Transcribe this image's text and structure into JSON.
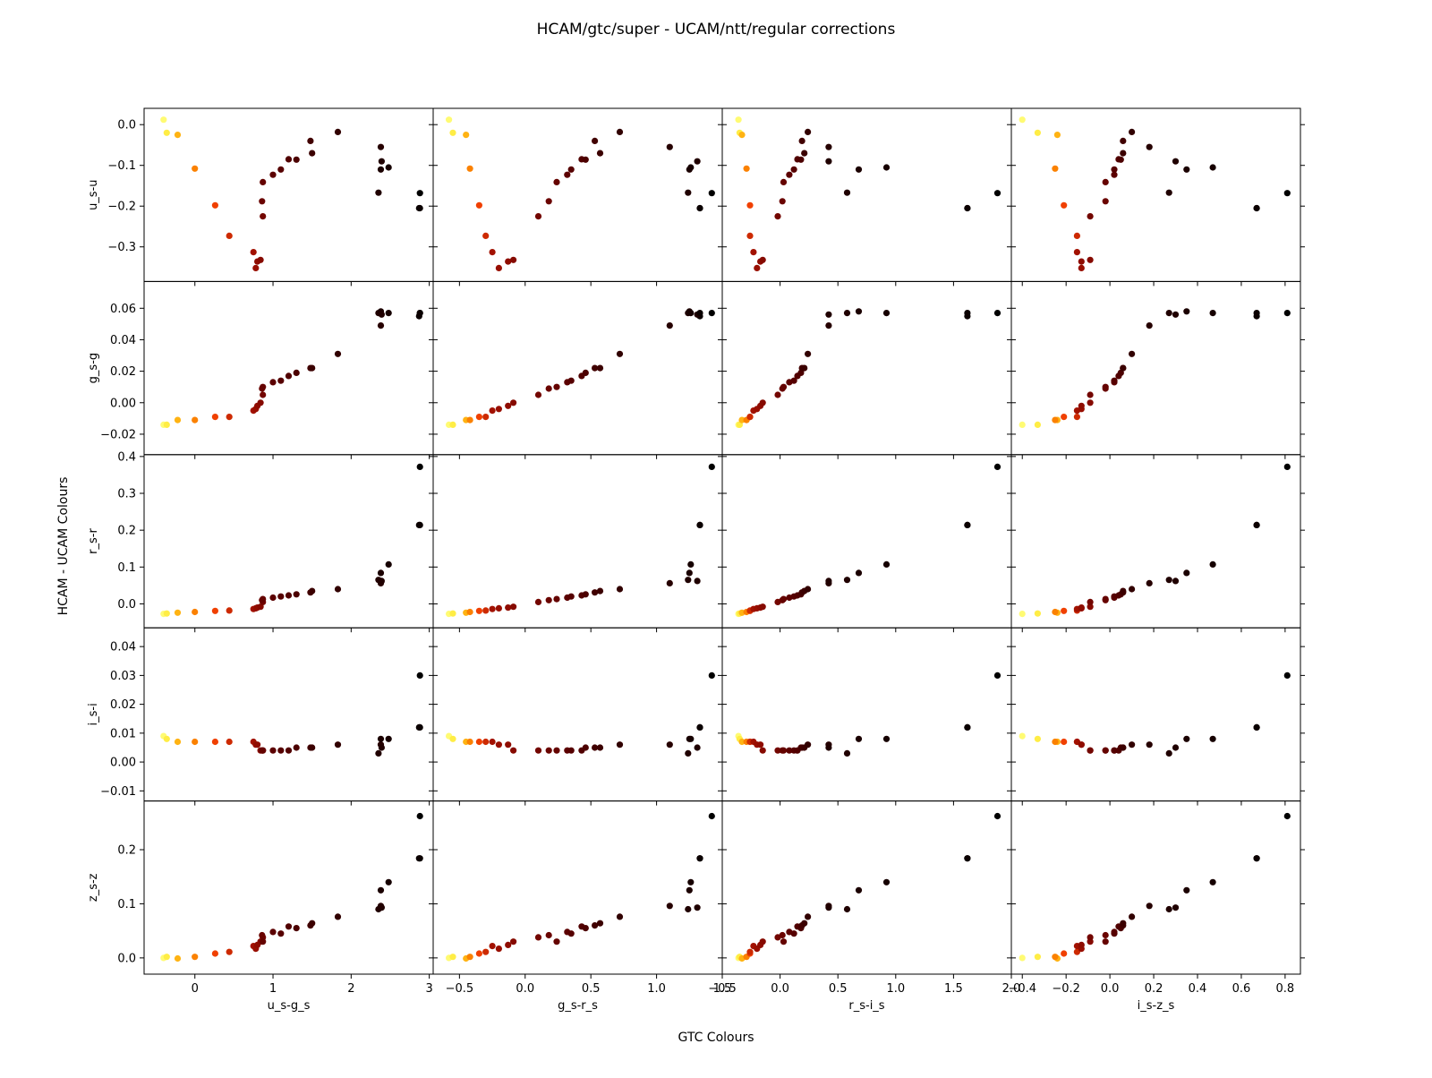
{
  "figure": {
    "title": "HCAM/gtc/super - UCAM/ntt/regular corrections",
    "xlabel": "GTC Colours",
    "ylabel": "HCAM - UCAM Colours"
  },
  "chart_data": {
    "type": "scatter",
    "grid": false,
    "colormap": [
      "#000000",
      "#5a0000",
      "#a81200",
      "#f04000",
      "#ff9a00",
      "#ffe93a",
      "#ffff80"
    ],
    "columns": [
      {
        "xlabel": "u_s-g_s",
        "xlim": [
          -0.65,
          3.05
        ],
        "ticks": [
          0,
          1,
          2,
          3
        ],
        "tick_labels": [
          "0",
          "1",
          "2",
          "3"
        ]
      },
      {
        "xlabel": "g_s-r_s",
        "xlim": [
          -0.7,
          1.5
        ],
        "ticks": [
          -0.5,
          0,
          0.5,
          1,
          1.5
        ],
        "tick_labels": [
          "−0.5",
          "0.0",
          "0.5",
          "1.0",
          "1.5"
        ]
      },
      {
        "xlabel": "r_s-i_s",
        "xlim": [
          -0.5,
          2.0
        ],
        "ticks": [
          -0.5,
          0,
          0.5,
          1,
          1.5,
          2
        ],
        "tick_labels": [
          "−0.5",
          "0.0",
          "0.5",
          "1.0",
          "1.5",
          "2.0"
        ]
      },
      {
        "xlabel": "i_s-z_s",
        "xlim": [
          -0.45,
          0.87
        ],
        "ticks": [
          -0.4,
          -0.2,
          0,
          0.2,
          0.4,
          0.6,
          0.8
        ],
        "tick_labels": [
          "−0.4",
          "−0.2",
          "0.0",
          "0.2",
          "0.4",
          "0.6",
          "0.8"
        ]
      }
    ],
    "rows": [
      {
        "ylabel": "u_s-u",
        "ylim": [
          -0.385,
          0.04
        ],
        "ticks": [
          0,
          -0.1,
          -0.2,
          -0.3
        ],
        "tick_labels": [
          "0.0",
          "−0.1",
          "−0.2",
          "−0.3"
        ]
      },
      {
        "ylabel": "g_s-g",
        "ylim": [
          -0.033,
          0.077
        ],
        "ticks": [
          0.06,
          0.04,
          0.02,
          0,
          -0.02
        ],
        "tick_labels": [
          "0.06",
          "0.04",
          "0.02",
          "0.00",
          "−0.02"
        ]
      },
      {
        "ylabel": "r_s-r",
        "ylim": [
          -0.065,
          0.405
        ],
        "ticks": [
          0.4,
          0.3,
          0.2,
          0.1,
          0
        ],
        "tick_labels": [
          "0.4",
          "0.3",
          "0.2",
          "0.1",
          "0.0"
        ]
      },
      {
        "ylabel": "i_s-i",
        "ylim": [
          -0.0135,
          0.0465
        ],
        "ticks": [
          0.04,
          0.03,
          0.02,
          0.01,
          0,
          -0.01
        ],
        "tick_labels": [
          "0.04",
          "0.03",
          "0.02",
          "0.01",
          "0.00",
          "−0.01"
        ]
      },
      {
        "ylabel": "z_s-z",
        "ylim": [
          -0.03,
          0.29
        ],
        "ticks": [
          0.2,
          0.1,
          0
        ],
        "tick_labels": [
          "0.2",
          "0.1",
          "0.0"
        ]
      }
    ],
    "stars": [
      {
        "c": [
          -0.4,
          -0.58,
          -0.36,
          -0.4
        ],
        "d": [
          0.012,
          -0.014,
          -0.027,
          0.009,
          0.0
        ],
        "t": 0.97
      },
      {
        "c": [
          -0.36,
          -0.55,
          -0.35,
          -0.33
        ],
        "d": [
          -0.02,
          -0.014,
          -0.026,
          0.008,
          0.002
        ],
        "t": 0.86
      },
      {
        "c": [
          -0.22,
          -0.45,
          -0.33,
          -0.24
        ],
        "d": [
          -0.025,
          -0.011,
          -0.024,
          0.007,
          -0.001
        ],
        "t": 0.72
      },
      {
        "c": [
          0.0,
          -0.42,
          -0.29,
          -0.25
        ],
        "d": [
          -0.108,
          -0.011,
          -0.022,
          0.007,
          0.002
        ],
        "t": 0.62
      },
      {
        "c": [
          0.26,
          -0.35,
          -0.26,
          -0.21
        ],
        "d": [
          -0.198,
          -0.009,
          -0.019,
          0.007,
          0.008
        ],
        "t": 0.5
      },
      {
        "c": [
          0.44,
          -0.3,
          -0.26,
          -0.15
        ],
        "d": [
          -0.273,
          -0.009,
          -0.018,
          0.007,
          0.011
        ],
        "t": 0.42
      },
      {
        "c": [
          0.75,
          -0.25,
          -0.23,
          -0.15
        ],
        "d": [
          -0.313,
          -0.005,
          -0.014,
          0.007,
          0.022
        ],
        "t": 0.32
      },
      {
        "c": [
          0.78,
          -0.2,
          -0.2,
          -0.13
        ],
        "d": [
          -0.352,
          -0.004,
          -0.012,
          0.006,
          0.017
        ],
        "t": 0.3
      },
      {
        "c": [
          0.8,
          -0.13,
          -0.17,
          -0.13
        ],
        "d": [
          -0.336,
          -0.002,
          -0.01,
          0.006,
          0.024
        ],
        "t": 0.28
      },
      {
        "c": [
          0.84,
          -0.09,
          -0.15,
          -0.09
        ],
        "d": [
          -0.332,
          0.0,
          -0.008,
          0.004,
          0.03
        ],
        "t": 0.26
      },
      {
        "c": [
          0.87,
          0.1,
          -0.02,
          -0.09
        ],
        "d": [
          -0.225,
          0.005,
          0.005,
          0.004,
          0.038
        ],
        "t": 0.22
      },
      {
        "c": [
          0.86,
          0.18,
          0.02,
          -0.02
        ],
        "d": [
          -0.188,
          0.009,
          0.01,
          0.004,
          0.042
        ],
        "t": 0.2
      },
      {
        "c": [
          0.87,
          0.24,
          0.03,
          -0.02
        ],
        "d": [
          -0.141,
          0.01,
          0.013,
          0.004,
          0.03
        ],
        "t": 0.19
      },
      {
        "c": [
          1.0,
          0.32,
          0.08,
          0.02
        ],
        "d": [
          -0.123,
          0.013,
          0.017,
          0.004,
          0.048
        ],
        "t": 0.17
      },
      {
        "c": [
          1.1,
          0.35,
          0.12,
          0.02
        ],
        "d": [
          -0.11,
          0.014,
          0.02,
          0.004,
          0.045
        ],
        "t": 0.16
      },
      {
        "c": [
          1.2,
          0.43,
          0.15,
          0.04
        ],
        "d": [
          -0.085,
          0.017,
          0.023,
          0.004,
          0.058
        ],
        "t": 0.15
      },
      {
        "c": [
          1.3,
          0.46,
          0.18,
          0.05
        ],
        "d": [
          -0.086,
          0.019,
          0.026,
          0.005,
          0.055
        ],
        "t": 0.14
      },
      {
        "c": [
          1.48,
          0.53,
          0.19,
          0.06
        ],
        "d": [
          -0.04,
          0.022,
          0.031,
          0.005,
          0.06
        ],
        "t": 0.12
      },
      {
        "c": [
          1.5,
          0.57,
          0.21,
          0.06
        ],
        "d": [
          -0.07,
          0.022,
          0.035,
          0.005,
          0.064
        ],
        "t": 0.11
      },
      {
        "c": [
          1.83,
          0.72,
          0.24,
          0.1
        ],
        "d": [
          -0.018,
          0.031,
          0.04,
          0.006,
          0.076
        ],
        "t": 0.09
      },
      {
        "c": [
          2.38,
          1.1,
          0.42,
          0.18
        ],
        "d": [
          -0.055,
          0.049,
          0.056,
          0.006,
          0.096
        ],
        "t": 0.07
      },
      {
        "c": [
          2.35,
          1.24,
          0.58,
          0.27
        ],
        "d": [
          -0.167,
          0.057,
          0.065,
          0.003,
          0.09
        ],
        "t": 0.06
      },
      {
        "c": [
          2.38,
          1.25,
          0.68,
          0.35
        ],
        "d": [
          -0.11,
          0.058,
          0.084,
          0.008,
          0.125
        ],
        "t": 0.05
      },
      {
        "c": [
          2.48,
          1.26,
          0.92,
          0.47
        ],
        "d": [
          -0.105,
          0.057,
          0.107,
          0.008,
          0.14
        ],
        "t": 0.04
      },
      {
        "c": [
          2.87,
          1.33,
          1.62,
          0.67
        ],
        "d": [
          -0.205,
          0.055,
          0.214,
          0.012,
          0.184
        ],
        "t": 0.02
      },
      {
        "c": [
          2.88,
          1.42,
          1.88,
          0.81
        ],
        "d": [
          -0.168,
          0.057,
          0.372,
          0.03,
          0.262
        ],
        "t": 0.0
      },
      {
        "c": [
          2.39,
          1.31,
          0.42,
          0.3
        ],
        "d": [
          -0.09,
          0.056,
          0.062,
          0.005,
          0.093
        ],
        "t": 0.06
      },
      {
        "c": [
          2.88,
          1.33,
          1.62,
          0.67
        ],
        "d": [
          -0.205,
          0.057,
          0.214,
          0.012,
          0.184
        ],
        "t": 0.02
      }
    ]
  }
}
